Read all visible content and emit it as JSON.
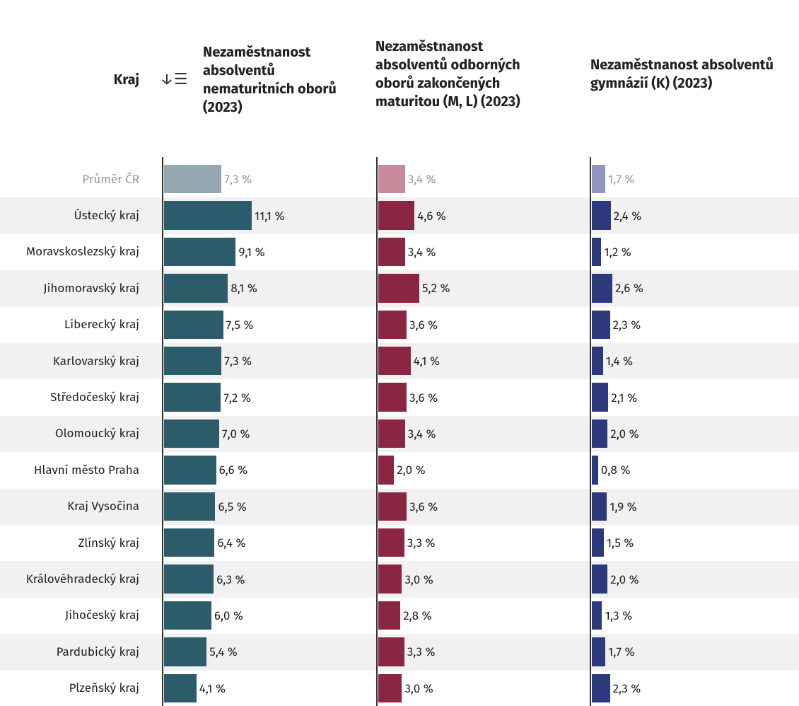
{
  "table": {
    "headers": [
      "Kraj",
      "Nezaměstnanost absolventů nematuritních oborů (2023)",
      "Nezaměstnanost absolventů odborných oborů zakončených maturitou (M, L) (2023)",
      "Nezaměstnanost absolventů gymnázií (K) (2023)"
    ],
    "colors": [
      "#2c5b69",
      "#8b2642",
      "#2c3a7d"
    ],
    "average_colors": [
      "#93a8b1",
      "#c98b9c",
      "#9096c0"
    ],
    "rows": [
      {
        "name": "Průměr ČR",
        "values": [
          7.3,
          3.4,
          1.7
        ],
        "value_labels": [
          "7,3 %",
          "3,4 %",
          "1,7 %"
        ],
        "average": true
      },
      {
        "name": "Ústecký kraj",
        "values": [
          11.1,
          4.6,
          2.4
        ],
        "value_labels": [
          "11,1 %",
          "4,6 %",
          "2,4 %"
        ]
      },
      {
        "name": "Moravskoslezský kraj",
        "values": [
          9.1,
          3.4,
          1.2
        ],
        "value_labels": [
          "9,1 %",
          "3,4 %",
          "1,2 %"
        ]
      },
      {
        "name": "Jihomoravský kraj",
        "values": [
          8.1,
          5.2,
          2.6
        ],
        "value_labels": [
          "8,1 %",
          "5,2 %",
          "2,6 %"
        ]
      },
      {
        "name": "Liberecký kraj",
        "values": [
          7.5,
          3.6,
          2.3
        ],
        "value_labels": [
          "7,5 %",
          "3,6 %",
          "2,3 %"
        ]
      },
      {
        "name": "Karlovarský kraj",
        "values": [
          7.3,
          4.1,
          1.4
        ],
        "value_labels": [
          "7,3 %",
          "4,1 %",
          "1,4 %"
        ]
      },
      {
        "name": "Středočeský kraj",
        "values": [
          7.2,
          3.6,
          2.1
        ],
        "value_labels": [
          "7,2 %",
          "3,6 %",
          "2,1 %"
        ]
      },
      {
        "name": "Olomoucký kraj",
        "values": [
          7.0,
          3.4,
          2.0
        ],
        "value_labels": [
          "7,0 %",
          "3,4 %",
          "2,0 %"
        ]
      },
      {
        "name": "Hlavní město Praha",
        "values": [
          6.6,
          2.0,
          0.8
        ],
        "value_labels": [
          "6,6 %",
          "2,0 %",
          "0,8 %"
        ]
      },
      {
        "name": "Kraj Vysočina",
        "values": [
          6.5,
          3.6,
          1.9
        ],
        "value_labels": [
          "6,5 %",
          "3,6 %",
          "1,9 %"
        ]
      },
      {
        "name": "Zlínský kraj",
        "values": [
          6.4,
          3.3,
          1.5
        ],
        "value_labels": [
          "6,4 %",
          "3,3 %",
          "1,5 %"
        ]
      },
      {
        "name": "Královéhradecký kraj",
        "values": [
          6.3,
          3.0,
          2.0
        ],
        "value_labels": [
          "6,3 %",
          "3,0 %",
          "2,0 %"
        ]
      },
      {
        "name": "Jihočeský kraj",
        "values": [
          6.0,
          2.8,
          1.3
        ],
        "value_labels": [
          "6,0 %",
          "2,8 %",
          "1,3 %"
        ]
      },
      {
        "name": "Pardubický kraj",
        "values": [
          5.4,
          3.3,
          1.7
        ],
        "value_labels": [
          "5,4 %",
          "3,3 %",
          "1,7 %"
        ]
      },
      {
        "name": "Plzeňský kraj",
        "values": [
          4.1,
          3.0,
          2.3
        ],
        "value_labels": [
          "4,1 %",
          "3,0 %",
          "2,3 %"
        ]
      }
    ]
  }
}
